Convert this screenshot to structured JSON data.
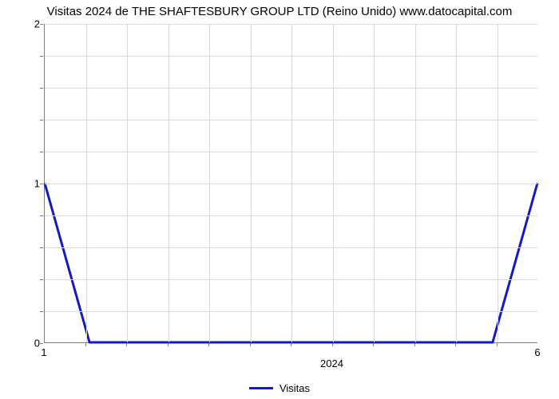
{
  "chart": {
    "type": "line",
    "title": "Visitas 2024 de THE SHAFTESBURY GROUP LTD (Reino Unido) www.datocapital.com",
    "title_fontsize": 15,
    "background_color": "#ffffff",
    "grid_color": "#d9d9d9",
    "axis_color": "#808080",
    "y": {
      "min": 0,
      "max": 2,
      "major_ticks": [
        0,
        1,
        2
      ],
      "minor_per_major": 5,
      "label_fontsize": 13
    },
    "x": {
      "n_slots": 12,
      "n_gridlines": 11,
      "left_label": "1",
      "right_label": "6",
      "center_label": "2024",
      "label_fontsize": 13
    },
    "series": {
      "name": "Visitas",
      "color": "#1519c4",
      "line_width": 3,
      "points": [
        {
          "x": 0.0,
          "y": 1.0
        },
        {
          "x": 1.0,
          "y": 0.0
        },
        {
          "x": 2.0,
          "y": 0.0
        },
        {
          "x": 3.0,
          "y": 0.0
        },
        {
          "x": 4.0,
          "y": 0.0
        },
        {
          "x": 5.0,
          "y": 0.0
        },
        {
          "x": 6.0,
          "y": 0.0
        },
        {
          "x": 7.0,
          "y": 0.0
        },
        {
          "x": 8.0,
          "y": 0.0
        },
        {
          "x": 9.0,
          "y": 0.0
        },
        {
          "x": 10.0,
          "y": 0.0
        },
        {
          "x": 11.0,
          "y": 1.0
        }
      ]
    },
    "legend": {
      "label": "Visitas"
    }
  }
}
